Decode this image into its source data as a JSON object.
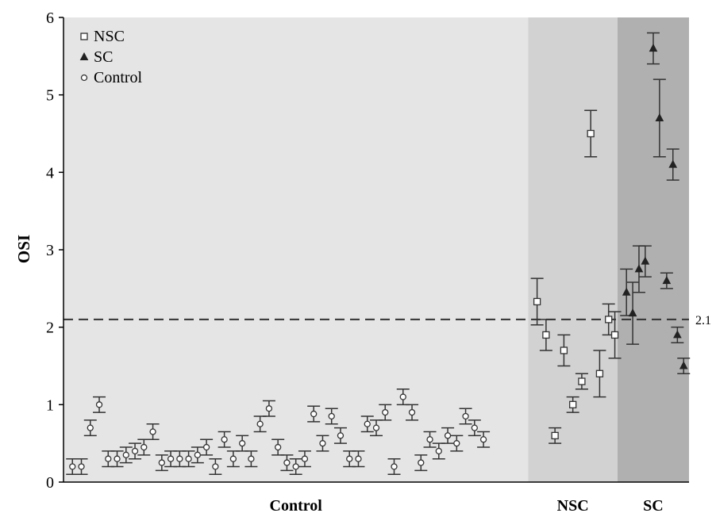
{
  "chart_data": {
    "type": "scatter",
    "ylabel": "OSI",
    "ylim": [
      0,
      6
    ],
    "yticks": [
      "0",
      "1",
      "2",
      "3",
      "4",
      "5",
      "6"
    ],
    "grid": false,
    "legend_position": "top-left",
    "groups": [
      {
        "label": "Control",
        "color": "#e5e5e5",
        "x_range": [
          0,
          52
        ]
      },
      {
        "label": "NSC",
        "color": "#d2d2d2",
        "x_range": [
          52,
          62
        ]
      },
      {
        "label": "SC",
        "color": "#b0b0b0",
        "x_range": [
          62,
          70
        ]
      }
    ],
    "reference_line": {
      "y": 2.1,
      "label": "2.1"
    },
    "series": [
      {
        "name": "Control",
        "marker": "circle",
        "points": [
          {
            "x": 1,
            "y": 0.2,
            "err": 0.1
          },
          {
            "x": 2,
            "y": 0.2,
            "err": 0.1
          },
          {
            "x": 3,
            "y": 0.7,
            "err": 0.1
          },
          {
            "x": 4,
            "y": 1.0,
            "err": 0.1
          },
          {
            "x": 5,
            "y": 0.3,
            "err": 0.1
          },
          {
            "x": 6,
            "y": 0.3,
            "err": 0.1
          },
          {
            "x": 7,
            "y": 0.35,
            "err": 0.1
          },
          {
            "x": 8,
            "y": 0.4,
            "err": 0.1
          },
          {
            "x": 9,
            "y": 0.45,
            "err": 0.1
          },
          {
            "x": 10,
            "y": 0.65,
            "err": 0.1
          },
          {
            "x": 11,
            "y": 0.25,
            "err": 0.1
          },
          {
            "x": 12,
            "y": 0.3,
            "err": 0.1
          },
          {
            "x": 13,
            "y": 0.3,
            "err": 0.1
          },
          {
            "x": 14,
            "y": 0.3,
            "err": 0.1
          },
          {
            "x": 15,
            "y": 0.35,
            "err": 0.1
          },
          {
            "x": 16,
            "y": 0.45,
            "err": 0.1
          },
          {
            "x": 17,
            "y": 0.2,
            "err": 0.1
          },
          {
            "x": 18,
            "y": 0.55,
            "err": 0.1
          },
          {
            "x": 19,
            "y": 0.3,
            "err": 0.1
          },
          {
            "x": 20,
            "y": 0.5,
            "err": 0.1
          },
          {
            "x": 21,
            "y": 0.3,
            "err": 0.1
          },
          {
            "x": 22,
            "y": 0.75,
            "err": 0.1
          },
          {
            "x": 23,
            "y": 0.95,
            "err": 0.1
          },
          {
            "x": 24,
            "y": 0.45,
            "err": 0.1
          },
          {
            "x": 25,
            "y": 0.25,
            "err": 0.1
          },
          {
            "x": 26,
            "y": 0.2,
            "err": 0.1
          },
          {
            "x": 27,
            "y": 0.3,
            "err": 0.1
          },
          {
            "x": 28,
            "y": 0.88,
            "err": 0.1
          },
          {
            "x": 29,
            "y": 0.5,
            "err": 0.1
          },
          {
            "x": 30,
            "y": 0.85,
            "err": 0.1
          },
          {
            "x": 31,
            "y": 0.6,
            "err": 0.1
          },
          {
            "x": 32,
            "y": 0.3,
            "err": 0.1
          },
          {
            "x": 33,
            "y": 0.3,
            "err": 0.1
          },
          {
            "x": 34,
            "y": 0.75,
            "err": 0.1
          },
          {
            "x": 35,
            "y": 0.7,
            "err": 0.1
          },
          {
            "x": 36,
            "y": 0.9,
            "err": 0.1
          },
          {
            "x": 37,
            "y": 0.2,
            "err": 0.1
          },
          {
            "x": 38,
            "y": 1.1,
            "err": 0.1
          },
          {
            "x": 39,
            "y": 0.9,
            "err": 0.1
          },
          {
            "x": 40,
            "y": 0.25,
            "err": 0.1
          },
          {
            "x": 41,
            "y": 0.55,
            "err": 0.1
          },
          {
            "x": 42,
            "y": 0.4,
            "err": 0.1
          },
          {
            "x": 43,
            "y": 0.6,
            "err": 0.1
          },
          {
            "x": 44,
            "y": 0.5,
            "err": 0.1
          },
          {
            "x": 45,
            "y": 0.85,
            "err": 0.1
          },
          {
            "x": 46,
            "y": 0.7,
            "err": 0.1
          },
          {
            "x": 47,
            "y": 0.55,
            "err": 0.1
          }
        ]
      },
      {
        "name": "NSC",
        "marker": "square",
        "points": [
          {
            "x": 53,
            "y": 2.33,
            "err": 0.3
          },
          {
            "x": 54,
            "y": 1.9,
            "err": 0.2
          },
          {
            "x": 55,
            "y": 0.6,
            "err": 0.1
          },
          {
            "x": 56,
            "y": 1.7,
            "err": 0.2
          },
          {
            "x": 57,
            "y": 1.0,
            "err": 0.1
          },
          {
            "x": 58,
            "y": 1.3,
            "err": 0.1
          },
          {
            "x": 59,
            "y": 4.5,
            "err": 0.3
          },
          {
            "x": 60,
            "y": 1.4,
            "err": 0.3
          },
          {
            "x": 61,
            "y": 2.1,
            "err": 0.2
          },
          {
            "x": 61.7,
            "y": 1.9,
            "err": 0.3
          }
        ]
      },
      {
        "name": "SC",
        "marker": "triangle",
        "points": [
          {
            "x": 63,
            "y": 2.45,
            "err": 0.3
          },
          {
            "x": 63.7,
            "y": 2.18,
            "err": 0.4
          },
          {
            "x": 64.4,
            "y": 2.75,
            "err": 0.3
          },
          {
            "x": 65.1,
            "y": 2.85,
            "err": 0.2
          },
          {
            "x": 66,
            "y": 5.6,
            "err": 0.2
          },
          {
            "x": 66.7,
            "y": 4.7,
            "err": 0.5
          },
          {
            "x": 67.5,
            "y": 2.6,
            "err": 0.1
          },
          {
            "x": 68.2,
            "y": 4.1,
            "err": 0.2
          },
          {
            "x": 68.7,
            "y": 1.9,
            "err": 0.1
          },
          {
            "x": 69.4,
            "y": 1.5,
            "err": 0.1
          }
        ]
      }
    ]
  }
}
